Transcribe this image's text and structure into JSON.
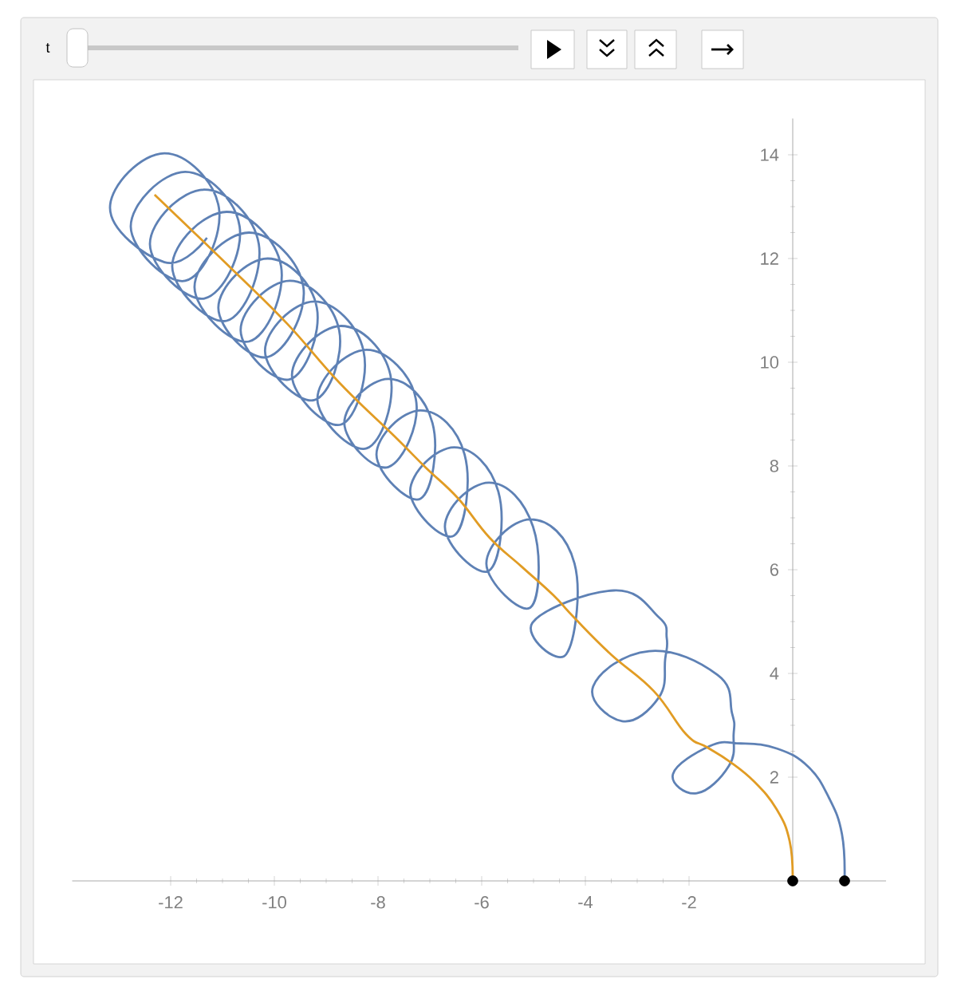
{
  "chart_data": {
    "type": "line",
    "xlim": [
      -13.9,
      1.8
    ],
    "ylim": [
      0,
      14.7
    ],
    "xticks": [
      -12,
      -10,
      -8,
      -6,
      -4,
      -2
    ],
    "yticks": [
      2,
      4,
      6,
      8,
      10,
      12,
      14
    ],
    "line_style": "solid",
    "annotations": [
      "t"
    ],
    "series": [
      {
        "color": "#5e81b5",
        "marker": "none",
        "x": [
          1,
          0.95,
          0.7,
          0.3,
          -0.3,
          -1.0,
          -1.6,
          -2.31,
          -1.85,
          -1.23,
          -1.14,
          -1.17,
          -1.45,
          -2.77,
          -3.85,
          -3.29,
          -2.58,
          -2.46,
          -2.43,
          -2.58,
          -3.45,
          -5.02,
          -4.37,
          -4.21,
          -5.06,
          -5.91,
          -5.06,
          -5.01,
          -5.86,
          -6.71,
          -5.86,
          -5.68,
          -6.53,
          -7.38,
          -6.53,
          -6.33,
          -7.18,
          -8.03,
          -7.18,
          -6.95,
          -7.8,
          -8.65,
          -7.8,
          -7.27,
          -8.22,
          -9.17,
          -8.22,
          -7.76,
          -8.71,
          -9.66,
          -8.71,
          -8.28,
          -9.23,
          -10.18,
          -9.23,
          -8.75,
          -9.7,
          -10.65,
          -9.7,
          -9.18,
          -10.13,
          -11.08,
          -10.13,
          -9.44,
          -10.49,
          -11.54,
          -10.49,
          -9.87,
          -10.92,
          -11.97,
          -10.92,
          -10.3,
          -11.35,
          -12.4,
          -11.35,
          -10.67,
          -11.72,
          -12.77,
          -11.72,
          -11.07,
          -12.12,
          -13.17,
          -12.12,
          -11.3
        ],
        "values": [
          0,
          0.9,
          1.6,
          2.2,
          2.55,
          2.65,
          2.6,
          2.06,
          1.69,
          2.22,
          2.83,
          3.23,
          3.97,
          4.43,
          3.75,
          3.08,
          3.54,
          4.28,
          4.68,
          5.08,
          5.6,
          4.98,
          4.37,
          6.12,
          6.97,
          6.12,
          5.27,
          6.83,
          7.68,
          6.83,
          5.98,
          7.51,
          8.36,
          7.51,
          6.66,
          8.22,
          9.07,
          8.22,
          7.37,
          8.83,
          9.68,
          8.83,
          7.98,
          9.29,
          10.24,
          9.29,
          8.34,
          9.75,
          10.7,
          9.75,
          8.8,
          10.22,
          11.17,
          10.22,
          9.27,
          10.62,
          11.57,
          10.62,
          9.67,
          11.05,
          12.0,
          11.05,
          10.1,
          11.45,
          12.5,
          11.45,
          10.4,
          11.85,
          12.9,
          11.85,
          10.8,
          12.28,
          13.33,
          12.28,
          11.23,
          12.62,
          13.67,
          12.62,
          11.57,
          12.98,
          14.03,
          12.98,
          11.93,
          12.4
        ]
      },
      {
        "color": "#e19c24",
        "marker": "none",
        "x": [
          0,
          -0.06,
          -0.31,
          -0.74,
          -1.23,
          -1.66,
          -2.06,
          -2.68,
          -3.51,
          -4.22,
          -4.62,
          -5.23,
          -5.85,
          -6.46,
          -7.08,
          -7.69,
          -8.74,
          -9.75,
          -10.77,
          -12.31
        ],
        "values": [
          0,
          0.77,
          1.38,
          1.91,
          2.31,
          2.58,
          2.83,
          3.66,
          4.37,
          5.08,
          5.51,
          6.06,
          6.62,
          7.38,
          7.97,
          8.58,
          9.6,
          10.74,
          11.75,
          13.23
        ]
      },
      {
        "type": "scatter",
        "color": "#000000",
        "marker": "circle",
        "x": [
          0,
          1
        ],
        "values": [
          0,
          0
        ]
      }
    ]
  }
}
